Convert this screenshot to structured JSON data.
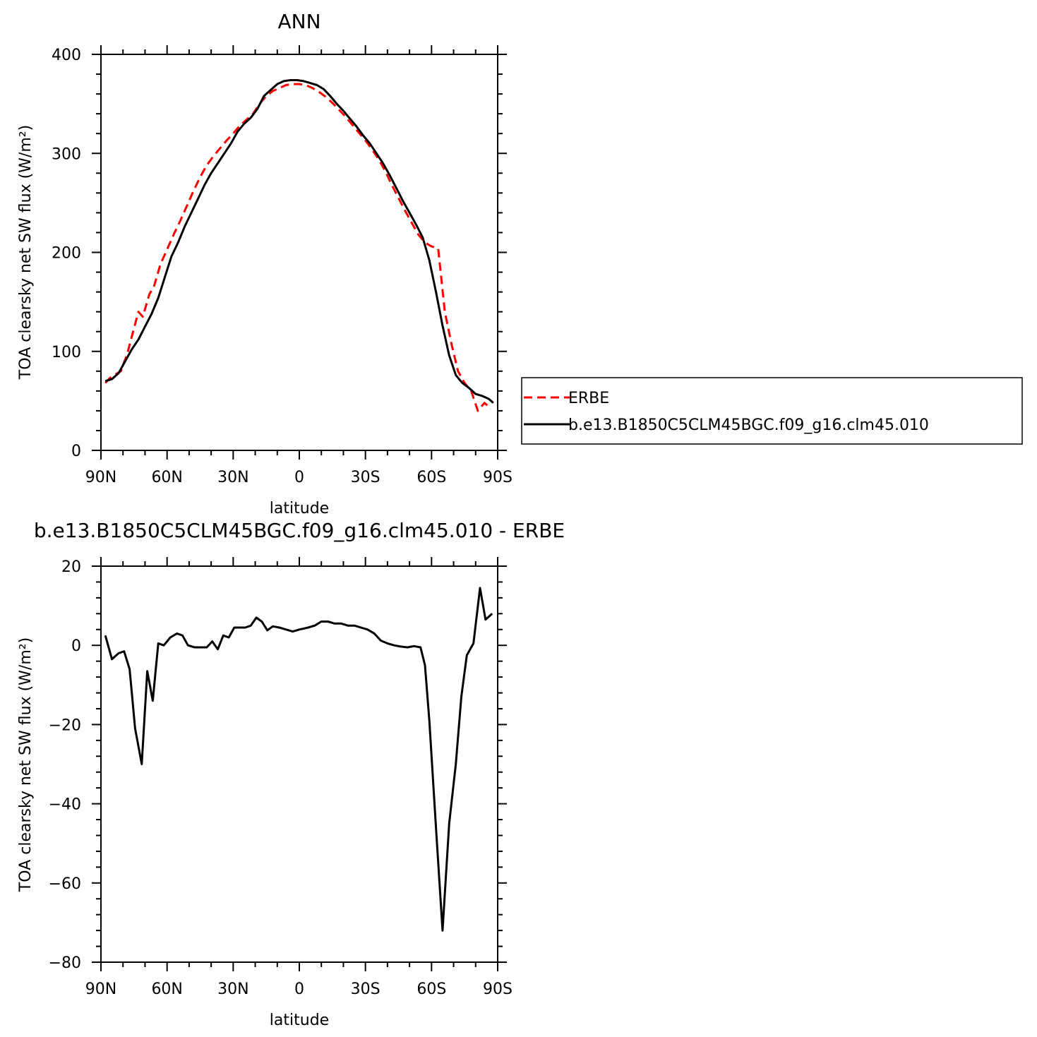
{
  "chart_data": [
    {
      "type": "line",
      "title": "ANN",
      "xlabel": "latitude",
      "ylabel": "TOA clearsky net SW flux (W/m²)",
      "xlim": [
        -90,
        90
      ],
      "ylim": [
        0,
        400
      ],
      "x_tick_values": [
        -90,
        -60,
        -30,
        0,
        30,
        60,
        90
      ],
      "x_tick_labels": [
        "90N",
        "60N",
        "30N",
        "0",
        "30S",
        "60S",
        "90S"
      ],
      "y_tick_values": [
        0,
        100,
        200,
        300,
        400
      ],
      "y_tick_labels": [
        "0",
        "100",
        "200",
        "300",
        "400"
      ],
      "legend_position": "right",
      "series": [
        {
          "name": "ERBE",
          "color": "#ff0000",
          "dash": "dashed",
          "points": [
            [
              -88,
              68
            ],
            [
              -86,
              73
            ],
            [
              -84,
              76
            ],
            [
              -81,
              80
            ],
            [
              -78,
              98
            ],
            [
              -76,
              115
            ],
            [
              -73,
              140
            ],
            [
              -71,
              135
            ],
            [
              -68,
              158
            ],
            [
              -66,
              165
            ],
            [
              -63,
              188
            ],
            [
              -60,
              203
            ],
            [
              -57,
              218
            ],
            [
              -54,
              232
            ],
            [
              -51,
              247
            ],
            [
              -48,
              262
            ],
            [
              -45,
              276
            ],
            [
              -42,
              288
            ],
            [
              -39,
              297
            ],
            [
              -36,
              305
            ],
            [
              -33,
              313
            ],
            [
              -30,
              320
            ],
            [
              -27,
              328
            ],
            [
              -24,
              334
            ],
            [
              -21,
              340
            ],
            [
              -18,
              350
            ],
            [
              -15,
              358
            ],
            [
              -12,
              363
            ],
            [
              -9,
              366
            ],
            [
              -6,
              369
            ],
            [
              -3,
              370
            ],
            [
              0,
              370
            ],
            [
              3,
              369
            ],
            [
              6,
              366
            ],
            [
              9,
              362
            ],
            [
              12,
              357
            ],
            [
              15,
              351
            ],
            [
              18,
              344
            ],
            [
              21,
              337
            ],
            [
              24,
              329
            ],
            [
              27,
              321
            ],
            [
              30,
              313
            ],
            [
              33,
              304
            ],
            [
              36,
              294
            ],
            [
              39,
              282
            ],
            [
              42,
              268
            ],
            [
              45,
              255
            ],
            [
              48,
              242
            ],
            [
              51,
              230
            ],
            [
              54,
              218
            ],
            [
              57,
              210
            ],
            [
              60,
              206
            ],
            [
              63,
              204
            ],
            [
              66,
              140
            ],
            [
              69,
              108
            ],
            [
              72,
              80
            ],
            [
              75,
              68
            ],
            [
              78,
              60
            ],
            [
              81,
              40
            ],
            [
              84,
              48
            ],
            [
              87,
              42
            ]
          ]
        },
        {
          "name": "b.e13.B1850C5CLM45BGC.f09_g16.clm45.010",
          "color": "#000000",
          "dash": "solid",
          "points": [
            [
              -88,
              70
            ],
            [
              -85,
              72
            ],
            [
              -82,
              78
            ],
            [
              -79,
              90
            ],
            [
              -76,
              102
            ],
            [
              -73,
              112
            ],
            [
              -70,
              125
            ],
            [
              -67,
              138
            ],
            [
              -64,
              154
            ],
            [
              -61,
              175
            ],
            [
              -58,
              196
            ],
            [
              -55,
              210
            ],
            [
              -52,
              226
            ],
            [
              -49,
              240
            ],
            [
              -46,
              254
            ],
            [
              -43,
              268
            ],
            [
              -40,
              280
            ],
            [
              -37,
              290
            ],
            [
              -34,
              300
            ],
            [
              -31,
              310
            ],
            [
              -28,
              322
            ],
            [
              -25,
              330
            ],
            [
              -22,
              336
            ],
            [
              -19,
              345
            ],
            [
              -16,
              358
            ],
            [
              -13,
              364
            ],
            [
              -10,
              370
            ],
            [
              -7,
              373
            ],
            [
              -4,
              374
            ],
            [
              -1,
              374
            ],
            [
              2,
              373
            ],
            [
              5,
              371
            ],
            [
              8,
              369
            ],
            [
              11,
              365
            ],
            [
              14,
              358
            ],
            [
              17,
              350
            ],
            [
              20,
              343
            ],
            [
              23,
              335
            ],
            [
              26,
              327
            ],
            [
              29,
              318
            ],
            [
              32,
              310
            ],
            [
              35,
              300
            ],
            [
              38,
              290
            ],
            [
              41,
              278
            ],
            [
              44,
              265
            ],
            [
              47,
              252
            ],
            [
              50,
              240
            ],
            [
              53,
              228
            ],
            [
              56,
              215
            ],
            [
              59,
              192
            ],
            [
              62,
              160
            ],
            [
              65,
              126
            ],
            [
              68,
              96
            ],
            [
              71,
              76
            ],
            [
              74,
              68
            ],
            [
              77,
              63
            ],
            [
              80,
              57
            ],
            [
              83,
              55
            ],
            [
              86,
              52
            ],
            [
              88,
              48
            ]
          ]
        }
      ]
    },
    {
      "type": "line",
      "title": "b.e13.B1850C5CLM45BGC.f09_g16.clm45.010 - ERBE",
      "xlabel": "latitude",
      "ylabel": "TOA clearsky net SW flux (W/m²)",
      "xlim": [
        -90,
        90
      ],
      "ylim": [
        -80,
        20
      ],
      "x_tick_values": [
        -90,
        -60,
        -30,
        0,
        30,
        60,
        90
      ],
      "x_tick_labels": [
        "90N",
        "60N",
        "30N",
        "0",
        "30S",
        "60S",
        "90S"
      ],
      "y_tick_values": [
        -80,
        -60,
        -40,
        -20,
        0,
        20
      ],
      "y_tick_labels": [
        "−80",
        "−60",
        "−40",
        "−20",
        "0",
        "20"
      ],
      "series": [
        {
          "color": "#000000",
          "dash": "solid",
          "points": [
            [
              -88,
              2.5
            ],
            [
              -85,
              -3.5
            ],
            [
              -82,
              -2
            ],
            [
              -79.5,
              -1.5
            ],
            [
              -77,
              -6
            ],
            [
              -74.5,
              -21
            ],
            [
              -71.5,
              -30
            ],
            [
              -69,
              -6.5
            ],
            [
              -66.5,
              -14
            ],
            [
              -64,
              0.5
            ],
            [
              -61.5,
              0
            ],
            [
              -58.5,
              2
            ],
            [
              -55.5,
              3
            ],
            [
              -53,
              2.5
            ],
            [
              -50.5,
              0
            ],
            [
              -47.5,
              -0.5
            ],
            [
              -45,
              -0.5
            ],
            [
              -42,
              -0.5
            ],
            [
              -39.5,
              1
            ],
            [
              -37,
              -1
            ],
            [
              -34.5,
              2.5
            ],
            [
              -32,
              2
            ],
            [
              -29.5,
              4.5
            ],
            [
              -27,
              4.5
            ],
            [
              -24.5,
              4.5
            ],
            [
              -22,
              5
            ],
            [
              -19.5,
              7
            ],
            [
              -17,
              6
            ],
            [
              -14.5,
              3.8
            ],
            [
              -12,
              4.8
            ],
            [
              -9,
              4.5
            ],
            [
              -6,
              4
            ],
            [
              -3,
              3.5
            ],
            [
              0,
              4
            ],
            [
              4,
              4.5
            ],
            [
              7,
              5
            ],
            [
              10,
              6
            ],
            [
              13,
              6
            ],
            [
              16,
              5.5
            ],
            [
              19,
              5.5
            ],
            [
              22,
              5
            ],
            [
              25,
              5
            ],
            [
              28,
              4.5
            ],
            [
              31,
              4
            ],
            [
              34,
              3
            ],
            [
              37,
              1.2
            ],
            [
              40,
              0.5
            ],
            [
              43,
              0
            ],
            [
              46,
              -0.3
            ],
            [
              49,
              -0.5
            ],
            [
              52,
              -0.2
            ],
            [
              55,
              -0.5
            ],
            [
              57,
              -5
            ],
            [
              59,
              -19
            ],
            [
              62,
              -46
            ],
            [
              65,
              -72
            ],
            [
              68,
              -45
            ],
            [
              71,
              -30
            ],
            [
              73.5,
              -13
            ],
            [
              76,
              -2.5
            ],
            [
              79,
              0.5
            ],
            [
              82,
              14.5
            ],
            [
              84.5,
              6.5
            ],
            [
              87.5,
              8
            ]
          ]
        }
      ]
    }
  ]
}
